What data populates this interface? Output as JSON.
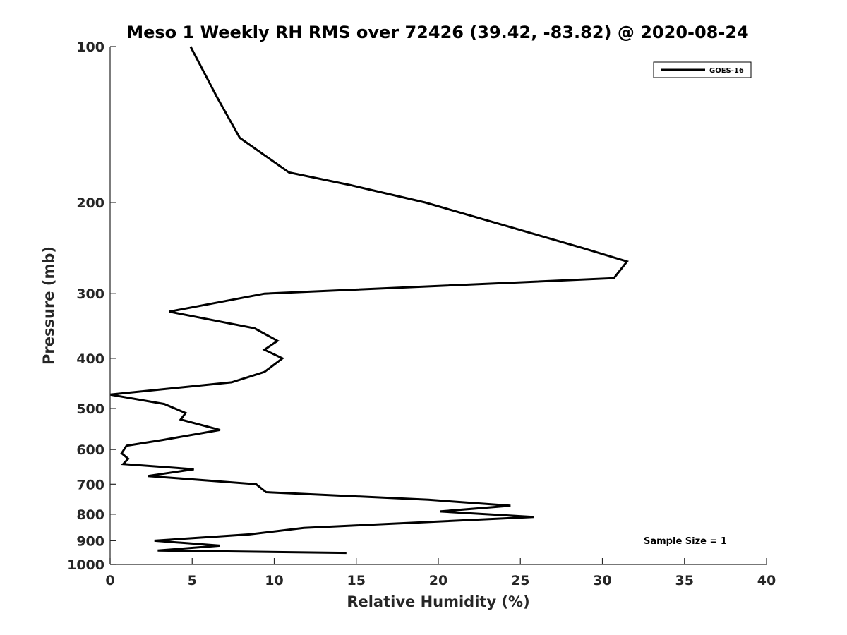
{
  "chart_data": {
    "type": "line",
    "title": "Meso 1 Weekly RH RMS over 72426 (39.42, -83.82) @ 2020-08-24",
    "xlabel": "Relative Humidity (%)",
    "ylabel": "Pressure (mb)",
    "xlim": [
      0,
      40
    ],
    "ylim": [
      100,
      1000
    ],
    "yscale": "log",
    "y_reversed": true,
    "xticks": [
      0,
      5,
      10,
      15,
      20,
      25,
      30,
      35,
      40
    ],
    "yticks": [
      100,
      200,
      300,
      400,
      500,
      600,
      700,
      800,
      900,
      1000
    ],
    "legend_position": "top-right",
    "series": [
      {
        "name": "GOES-16",
        "x": [
          4.9,
          6.5,
          7.9,
          10.9,
          14.6,
          19.2,
          28.8,
          31.5,
          30.7,
          9.4,
          3.6,
          8.8,
          10.2,
          9.4,
          10.5,
          9.4,
          7.4,
          0.0,
          3.3,
          4.6,
          4.3,
          6.7,
          3.2,
          1.0,
          0.7,
          1.1,
          0.8,
          5.1,
          2.3,
          8.9,
          9.5,
          19.4,
          24.4,
          20.1,
          25.8,
          11.8,
          8.5,
          2.7,
          6.7,
          2.9,
          14.4
        ],
        "y": [
          100,
          125,
          150,
          175,
          185,
          200,
          245,
          260,
          280,
          300,
          325,
          350,
          370,
          385,
          400,
          425,
          445,
          470,
          490,
          510,
          525,
          550,
          575,
          590,
          610,
          625,
          640,
          655,
          675,
          700,
          725,
          750,
          770,
          790,
          810,
          850,
          875,
          900,
          920,
          940,
          950
        ]
      }
    ],
    "annotations": [
      "Sample Size = 1"
    ]
  }
}
